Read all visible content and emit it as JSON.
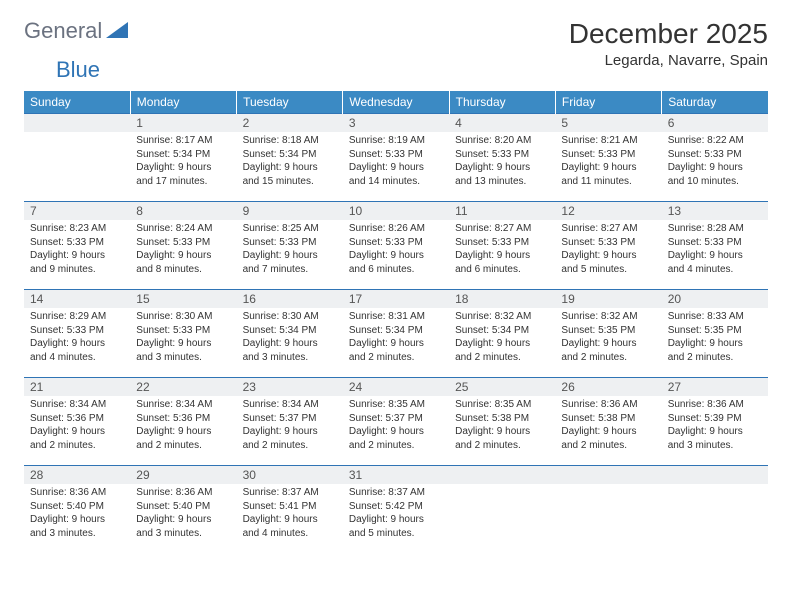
{
  "logo": {
    "general": "General",
    "blue": "Blue"
  },
  "title": "December 2025",
  "location": "Legarda, Navarre, Spain",
  "colors": {
    "header_bg": "#3b8ac4",
    "header_text": "#ffffff",
    "daynum_bg": "#eef0f2",
    "border": "#2f74b5",
    "logo_general": "#6b7280",
    "logo_blue": "#2f74b5"
  },
  "weekdays": [
    "Sunday",
    "Monday",
    "Tuesday",
    "Wednesday",
    "Thursday",
    "Friday",
    "Saturday"
  ],
  "weeks": [
    [
      null,
      {
        "n": "1",
        "sr": "8:17 AM",
        "ss": "5:34 PM",
        "dl": "9 hours and 17 minutes."
      },
      {
        "n": "2",
        "sr": "8:18 AM",
        "ss": "5:34 PM",
        "dl": "9 hours and 15 minutes."
      },
      {
        "n": "3",
        "sr": "8:19 AM",
        "ss": "5:33 PM",
        "dl": "9 hours and 14 minutes."
      },
      {
        "n": "4",
        "sr": "8:20 AM",
        "ss": "5:33 PM",
        "dl": "9 hours and 13 minutes."
      },
      {
        "n": "5",
        "sr": "8:21 AM",
        "ss": "5:33 PM",
        "dl": "9 hours and 11 minutes."
      },
      {
        "n": "6",
        "sr": "8:22 AM",
        "ss": "5:33 PM",
        "dl": "9 hours and 10 minutes."
      }
    ],
    [
      {
        "n": "7",
        "sr": "8:23 AM",
        "ss": "5:33 PM",
        "dl": "9 hours and 9 minutes."
      },
      {
        "n": "8",
        "sr": "8:24 AM",
        "ss": "5:33 PM",
        "dl": "9 hours and 8 minutes."
      },
      {
        "n": "9",
        "sr": "8:25 AM",
        "ss": "5:33 PM",
        "dl": "9 hours and 7 minutes."
      },
      {
        "n": "10",
        "sr": "8:26 AM",
        "ss": "5:33 PM",
        "dl": "9 hours and 6 minutes."
      },
      {
        "n": "11",
        "sr": "8:27 AM",
        "ss": "5:33 PM",
        "dl": "9 hours and 6 minutes."
      },
      {
        "n": "12",
        "sr": "8:27 AM",
        "ss": "5:33 PM",
        "dl": "9 hours and 5 minutes."
      },
      {
        "n": "13",
        "sr": "8:28 AM",
        "ss": "5:33 PM",
        "dl": "9 hours and 4 minutes."
      }
    ],
    [
      {
        "n": "14",
        "sr": "8:29 AM",
        "ss": "5:33 PM",
        "dl": "9 hours and 4 minutes."
      },
      {
        "n": "15",
        "sr": "8:30 AM",
        "ss": "5:33 PM",
        "dl": "9 hours and 3 minutes."
      },
      {
        "n": "16",
        "sr": "8:30 AM",
        "ss": "5:34 PM",
        "dl": "9 hours and 3 minutes."
      },
      {
        "n": "17",
        "sr": "8:31 AM",
        "ss": "5:34 PM",
        "dl": "9 hours and 2 minutes."
      },
      {
        "n": "18",
        "sr": "8:32 AM",
        "ss": "5:34 PM",
        "dl": "9 hours and 2 minutes."
      },
      {
        "n": "19",
        "sr": "8:32 AM",
        "ss": "5:35 PM",
        "dl": "9 hours and 2 minutes."
      },
      {
        "n": "20",
        "sr": "8:33 AM",
        "ss": "5:35 PM",
        "dl": "9 hours and 2 minutes."
      }
    ],
    [
      {
        "n": "21",
        "sr": "8:34 AM",
        "ss": "5:36 PM",
        "dl": "9 hours and 2 minutes."
      },
      {
        "n": "22",
        "sr": "8:34 AM",
        "ss": "5:36 PM",
        "dl": "9 hours and 2 minutes."
      },
      {
        "n": "23",
        "sr": "8:34 AM",
        "ss": "5:37 PM",
        "dl": "9 hours and 2 minutes."
      },
      {
        "n": "24",
        "sr": "8:35 AM",
        "ss": "5:37 PM",
        "dl": "9 hours and 2 minutes."
      },
      {
        "n": "25",
        "sr": "8:35 AM",
        "ss": "5:38 PM",
        "dl": "9 hours and 2 minutes."
      },
      {
        "n": "26",
        "sr": "8:36 AM",
        "ss": "5:38 PM",
        "dl": "9 hours and 2 minutes."
      },
      {
        "n": "27",
        "sr": "8:36 AM",
        "ss": "5:39 PM",
        "dl": "9 hours and 3 minutes."
      }
    ],
    [
      {
        "n": "28",
        "sr": "8:36 AM",
        "ss": "5:40 PM",
        "dl": "9 hours and 3 minutes."
      },
      {
        "n": "29",
        "sr": "8:36 AM",
        "ss": "5:40 PM",
        "dl": "9 hours and 3 minutes."
      },
      {
        "n": "30",
        "sr": "8:37 AM",
        "ss": "5:41 PM",
        "dl": "9 hours and 4 minutes."
      },
      {
        "n": "31",
        "sr": "8:37 AM",
        "ss": "5:42 PM",
        "dl": "9 hours and 5 minutes."
      },
      null,
      null,
      null
    ]
  ],
  "labels": {
    "sunrise": "Sunrise:",
    "sunset": "Sunset:",
    "daylight": "Daylight:"
  }
}
